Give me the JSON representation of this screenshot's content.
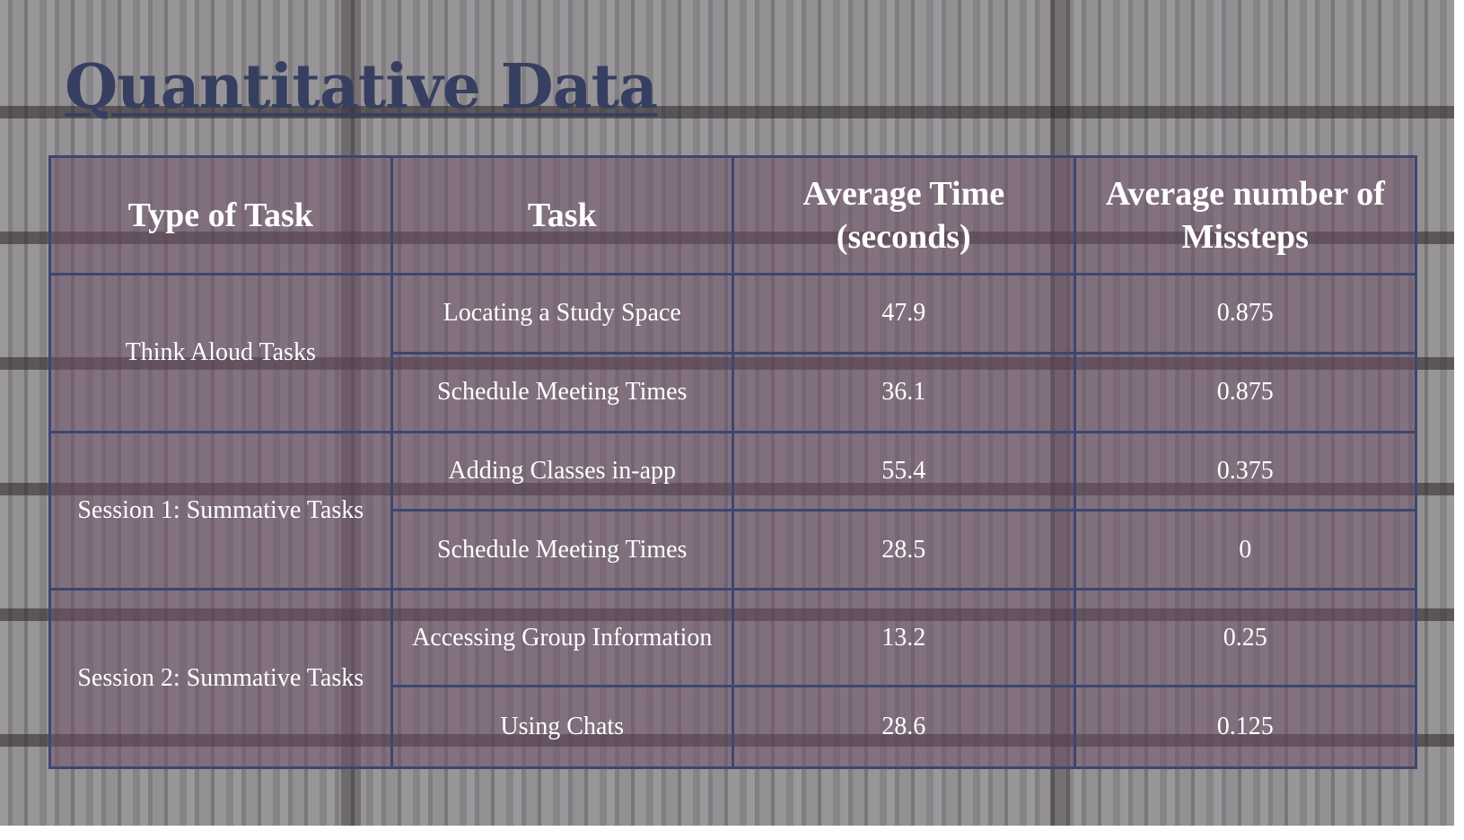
{
  "slide": {
    "title": "Quantitative Data"
  },
  "table": {
    "headers": [
      "Type of Task",
      "Task",
      "Average Time (seconds)",
      "Average number of Missteps"
    ],
    "groups": [
      {
        "type": "Think Aloud Tasks",
        "rows": [
          {
            "task": "Locating a Study Space",
            "avg_time": "47.9",
            "avg_missteps": "0.875"
          },
          {
            "task": "Schedule Meeting Times",
            "avg_time": "36.1",
            "avg_missteps": "0.875"
          }
        ]
      },
      {
        "type": "Session 1: Summative Tasks",
        "rows": [
          {
            "task": "Adding Classes in-app",
            "avg_time": "55.4",
            "avg_missteps": "0.375"
          },
          {
            "task": "Schedule Meeting Times",
            "avg_time": "28.5",
            "avg_missteps": "0"
          }
        ]
      },
      {
        "type": "Session 2: Summative Tasks",
        "rows": [
          {
            "task": "Accessing Group Information",
            "avg_time": "13.2",
            "avg_missteps": "0.25"
          },
          {
            "task": "Using Chats",
            "avg_time": "28.6",
            "avg_missteps": "0.125"
          }
        ]
      }
    ]
  },
  "colors": {
    "title": "#373f61",
    "table_border": "#3d4670",
    "table_fill": "#705068",
    "cell_text": "#ffffff"
  }
}
